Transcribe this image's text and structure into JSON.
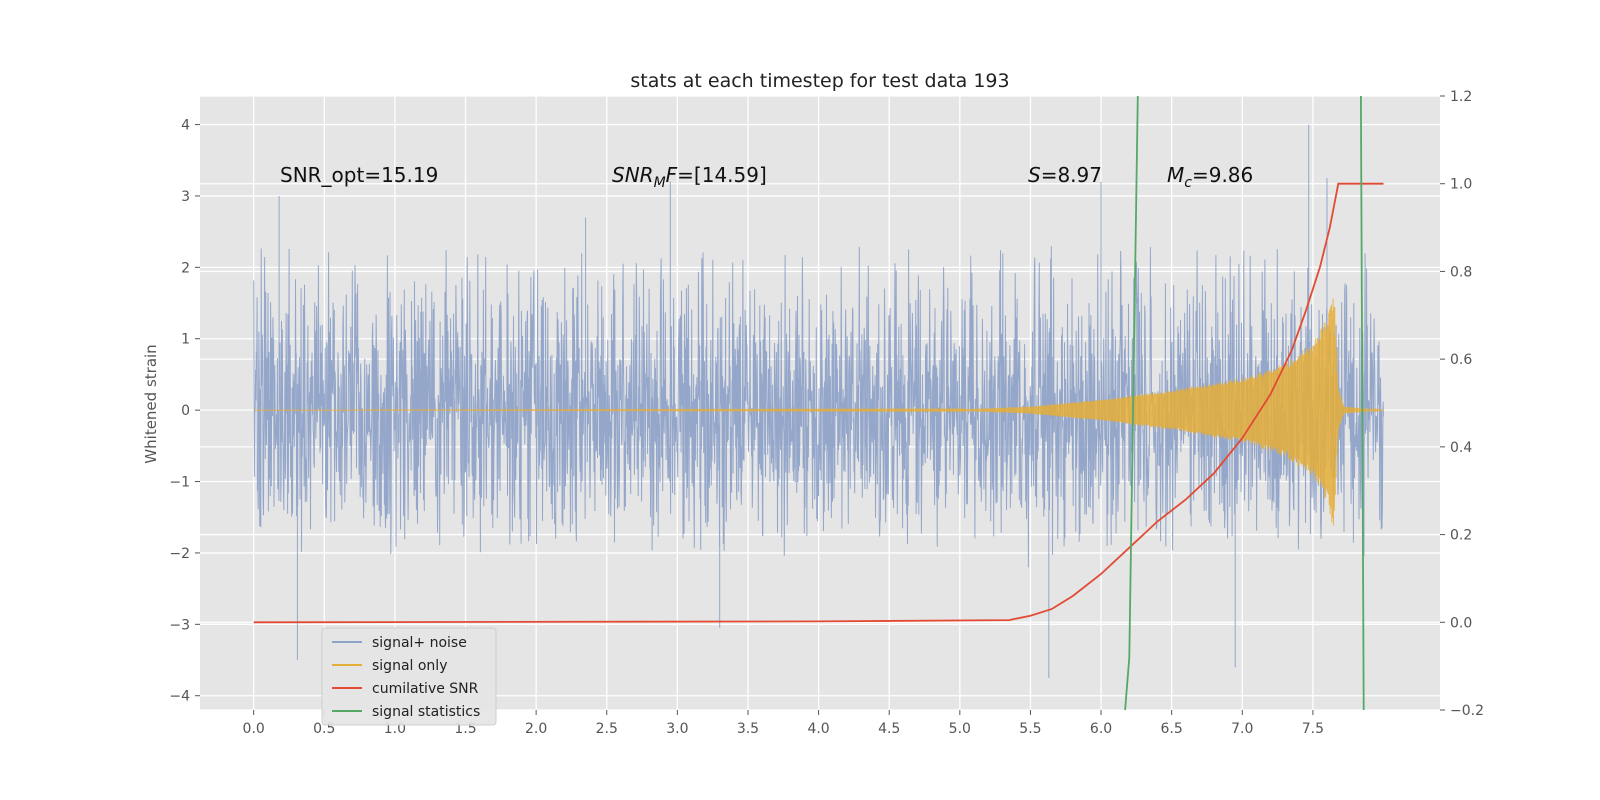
{
  "chart_data": {
    "type": "line",
    "title": "stats at each timestep for test data 193",
    "ylabel": "Whitened strain",
    "xlim": [
      -0.38,
      8.4
    ],
    "ylim": [
      -4.2,
      4.4
    ],
    "y2lim": [
      -0.2,
      1.2
    ],
    "x_ticks": [
      "0.0",
      "0.5",
      "1.0",
      "1.5",
      "2.0",
      "2.5",
      "3.0",
      "3.5",
      "4.0",
      "4.5",
      "5.0",
      "5.5",
      "6.0",
      "6.5",
      "7.0",
      "7.5"
    ],
    "y_ticks": [
      "−4",
      "−3",
      "−2",
      "−1",
      "0",
      "1",
      "2",
      "3",
      "4"
    ],
    "y2_ticks": [
      "−0.2",
      "0.0",
      "0.2",
      "0.4",
      "0.6",
      "0.8",
      "1.0",
      "1.2"
    ],
    "grid": true,
    "legend_position": "lower-left",
    "annotations": [
      {
        "text": "SNR_opt=15.19"
      },
      {
        "prefix": "SNR",
        "sub": "M",
        "mid": "F",
        "suffix": "=[14.59]"
      },
      {
        "prefix": "S",
        "sub": "",
        "mid": "",
        "suffix": "=8.97"
      },
      {
        "prefix": "M",
        "sub": "c",
        "mid": "",
        "suffix": "=9.86"
      }
    ],
    "series": [
      {
        "name": "signal+ noise",
        "color": "#8fa3c8",
        "axis": "left",
        "x_range": [
          0.0,
          8.0
        ],
        "typical_range": [
          -2.0,
          2.3
        ],
        "extremes": [
          {
            "x": 0.18,
            "y": 3.0
          },
          {
            "x": 0.31,
            "y": -3.5
          },
          {
            "x": 2.35,
            "y": 2.7
          },
          {
            "x": 2.95,
            "y": 3.2
          },
          {
            "x": 3.3,
            "y": -3.05
          },
          {
            "x": 5.63,
            "y": -3.75
          },
          {
            "x": 6.0,
            "y": 3.2
          },
          {
            "x": 6.95,
            "y": -3.6
          },
          {
            "x": 7.47,
            "y": 4.0
          },
          {
            "x": 7.6,
            "y": 3.25
          }
        ]
      },
      {
        "name": "signal only",
        "color": "#e5ae38",
        "axis": "left",
        "envelope": [
          {
            "x": 0.0,
            "y": 0.0
          },
          {
            "x": 5.0,
            "y": 0.01
          },
          {
            "x": 5.5,
            "y": 0.05
          },
          {
            "x": 6.0,
            "y": 0.15
          },
          {
            "x": 6.5,
            "y": 0.28
          },
          {
            "x": 7.0,
            "y": 0.45
          },
          {
            "x": 7.3,
            "y": 0.65
          },
          {
            "x": 7.5,
            "y": 0.95
          },
          {
            "x": 7.6,
            "y": 1.3
          },
          {
            "x": 7.65,
            "y": 1.7
          },
          {
            "x": 7.68,
            "y": 0.3
          },
          {
            "x": 7.72,
            "y": 0.05
          },
          {
            "x": 8.0,
            "y": 0.0
          }
        ]
      },
      {
        "name": "cumilative SNR",
        "color": "#e24a33",
        "axis": "right",
        "points": [
          {
            "x": 0.0,
            "y": 0.0
          },
          {
            "x": 4.0,
            "y": 0.002
          },
          {
            "x": 5.35,
            "y": 0.005
          },
          {
            "x": 5.5,
            "y": 0.015
          },
          {
            "x": 5.65,
            "y": 0.03
          },
          {
            "x": 5.8,
            "y": 0.06
          },
          {
            "x": 6.0,
            "y": 0.11
          },
          {
            "x": 6.2,
            "y": 0.17
          },
          {
            "x": 6.4,
            "y": 0.23
          },
          {
            "x": 6.6,
            "y": 0.28
          },
          {
            "x": 6.8,
            "y": 0.34
          },
          {
            "x": 7.0,
            "y": 0.42
          },
          {
            "x": 7.2,
            "y": 0.52
          },
          {
            "x": 7.35,
            "y": 0.62
          },
          {
            "x": 7.45,
            "y": 0.71
          },
          {
            "x": 7.55,
            "y": 0.81
          },
          {
            "x": 7.62,
            "y": 0.9
          },
          {
            "x": 7.68,
            "y": 1.0
          },
          {
            "x": 8.0,
            "y": 1.0
          }
        ]
      },
      {
        "name": "signal statistics",
        "color": "#55a868",
        "axis": "right",
        "segments": [
          [
            {
              "x": 6.17,
              "y": -0.2
            },
            {
              "x": 6.2,
              "y": -0.08
            },
            {
              "x": 6.26,
              "y": 1.2
            }
          ],
          [
            {
              "x": 7.84,
              "y": 1.2
            },
            {
              "x": 7.86,
              "y": -0.2
            }
          ]
        ]
      }
    ]
  }
}
